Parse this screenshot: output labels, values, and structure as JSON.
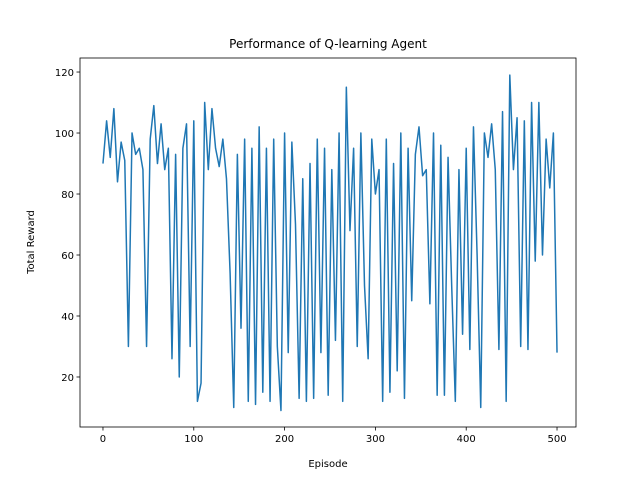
{
  "chart_data": {
    "type": "line",
    "title": "Performance of Q-learning Agent",
    "x_label": "Episode",
    "y_label": "Total Reward",
    "color": "#1f77b4",
    "x": [
      0,
      4,
      8,
      12,
      16,
      20,
      24,
      28,
      32,
      36,
      40,
      44,
      48,
      52,
      56,
      60,
      64,
      68,
      72,
      76,
      80,
      84,
      88,
      92,
      96,
      100,
      104,
      108,
      112,
      116,
      120,
      124,
      128,
      132,
      136,
      140,
      144,
      148,
      152,
      156,
      160,
      164,
      168,
      172,
      176,
      180,
      184,
      188,
      192,
      196,
      200,
      204,
      208,
      212,
      216,
      220,
      224,
      228,
      232,
      236,
      240,
      244,
      248,
      252,
      256,
      260,
      264,
      268,
      272,
      276,
      280,
      284,
      288,
      292,
      296,
      300,
      304,
      308,
      312,
      316,
      320,
      324,
      328,
      332,
      336,
      340,
      344,
      348,
      352,
      356,
      360,
      364,
      368,
      372,
      376,
      380,
      384,
      388,
      392,
      396,
      400,
      404,
      408,
      412,
      416,
      420,
      424,
      428,
      432,
      436,
      440,
      444,
      448,
      452,
      456,
      460,
      464,
      468,
      472,
      476,
      480,
      484,
      488,
      492,
      496,
      500
    ],
    "values": [
      90,
      104,
      92,
      108,
      84,
      97,
      91,
      30,
      100,
      93,
      95,
      88,
      30,
      98,
      109,
      90,
      103,
      88,
      95,
      26,
      93,
      20,
      95,
      103,
      30,
      104,
      12,
      18,
      110,
      88,
      108,
      95,
      89,
      98,
      85,
      54,
      10,
      93,
      36,
      98,
      12,
      95,
      11,
      102,
      15,
      95,
      12,
      98,
      30,
      9,
      100,
      28,
      97,
      70,
      13,
      85,
      12,
      90,
      13,
      98,
      28,
      95,
      14,
      88,
      32,
      100,
      12,
      115,
      68,
      95,
      30,
      100,
      50,
      26,
      98,
      80,
      88,
      12,
      98,
      15,
      90,
      22,
      100,
      13,
      95,
      45,
      93,
      102,
      86,
      88,
      44,
      100,
      14,
      96,
      14,
      92,
      50,
      12,
      88,
      34,
      95,
      29,
      102,
      60,
      10,
      100,
      92,
      103,
      88,
      29,
      107,
      12,
      119,
      88,
      105,
      30,
      104,
      29,
      110,
      58,
      110,
      60,
      98,
      82,
      100,
      28
    ],
    "xlim": [
      -25.3,
      520.9
    ],
    "ylim": [
      3.6,
      124.6
    ],
    "xticks": [
      0,
      100,
      200,
      300,
      400,
      500
    ],
    "yticks": [
      20,
      40,
      60,
      80,
      100,
      120
    ]
  }
}
